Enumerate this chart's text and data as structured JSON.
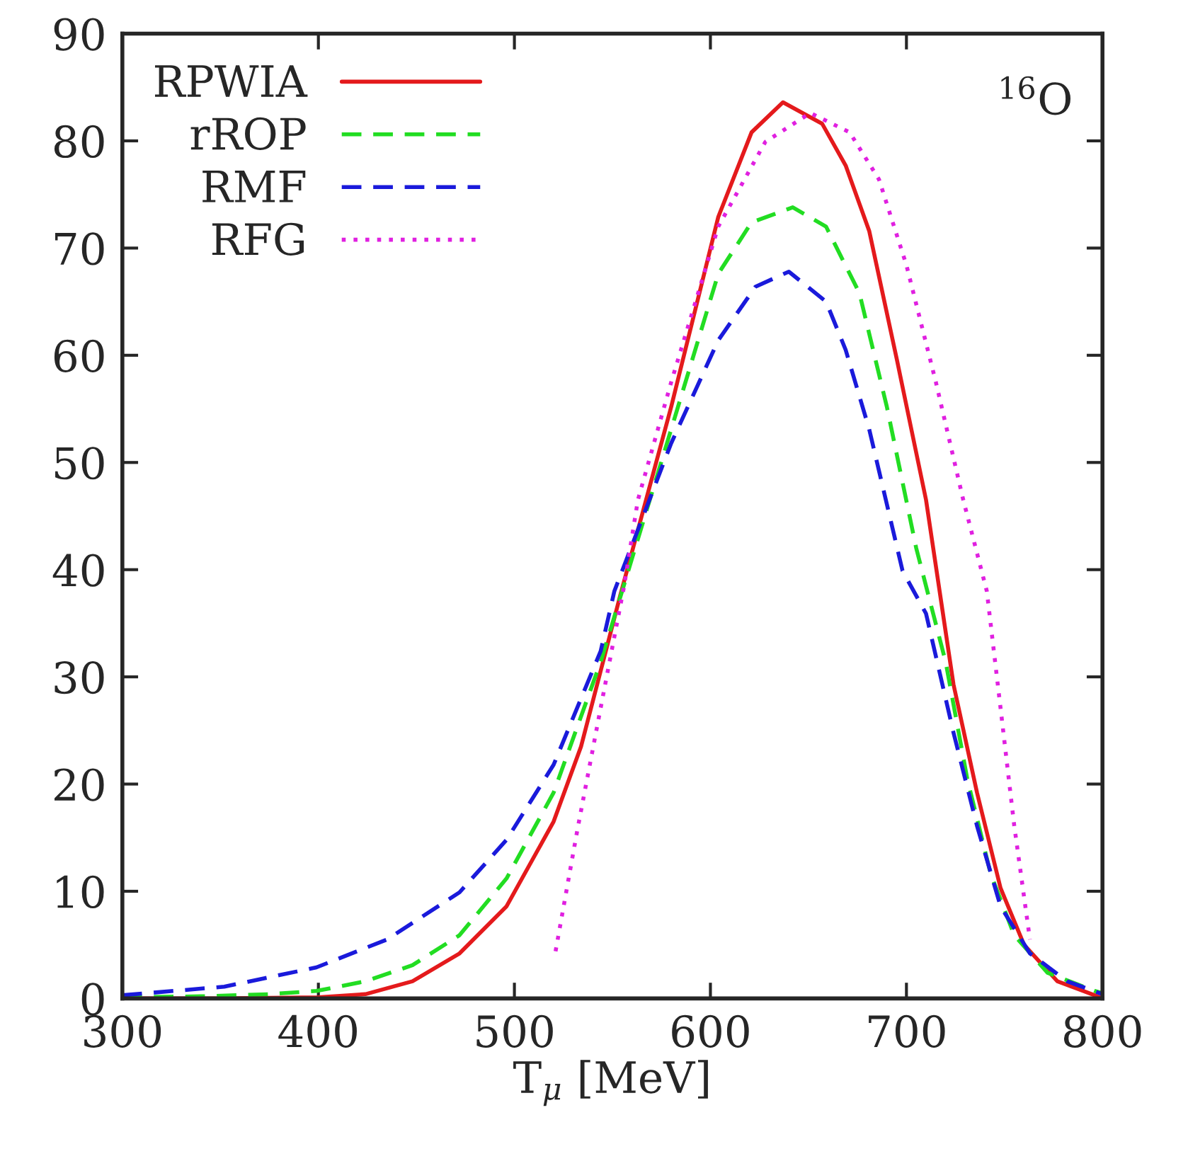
{
  "chart_data": {
    "type": "line",
    "xlabel": "T$_{μ}$ [MeV]",
    "annotations": [
      "$^{16}$O"
    ],
    "xlim": [
      300,
      800
    ],
    "xticks": [
      300,
      400,
      500,
      600,
      700,
      800
    ],
    "ylim": [
      0,
      90
    ],
    "yticks": [
      0,
      10,
      20,
      30,
      40,
      50,
      60,
      70,
      80,
      90
    ],
    "grid": false,
    "legend": "top left",
    "series": [
      {
        "name": "RPWIA",
        "color": "#e41a1c",
        "line_style": "solid",
        "x": [
          300,
          350,
          400,
          424,
          448,
          472,
          496,
          520,
          534,
          554,
          580,
          604,
          621,
          637,
          657,
          669,
          681,
          695,
          710,
          724,
          736,
          748,
          760,
          777,
          796,
          800
        ],
        "values": [
          0.0,
          0.0,
          0.1,
          0.4,
          1.6,
          4.2,
          8.6,
          16.5,
          23.5,
          37.6,
          55.2,
          72.9,
          80.8,
          83.6,
          81.6,
          77.7,
          71.6,
          59.7,
          46.5,
          29.3,
          19.2,
          10.3,
          5.0,
          1.6,
          0.3,
          0.0
        ]
      },
      {
        "name": "rROP",
        "color": "#22dd22",
        "line_style": "dashed",
        "x": [
          300,
          340,
          375,
          399,
          424,
          448,
          472,
          496,
          520,
          544,
          580,
          604,
          621,
          642,
          659,
          676,
          690,
          705,
          720,
          731,
          743,
          755,
          772,
          796,
          800
        ],
        "values": [
          0.1,
          0.2,
          0.4,
          0.7,
          1.6,
          3.1,
          5.9,
          11.2,
          19.2,
          31.4,
          53.1,
          67.6,
          72.4,
          73.8,
          72.0,
          65.8,
          55.2,
          42.0,
          31.4,
          20.5,
          11.6,
          5.9,
          2.4,
          0.7,
          0.5
        ]
      },
      {
        "name": "RMF",
        "color": "#1a1adb",
        "line_style": "dashed",
        "x": [
          300,
          352,
          399,
          435,
          472,
          496,
          520,
          544,
          551,
          580,
          604,
          623,
          640,
          659,
          669,
          681,
          698,
          710,
          724,
          736,
          748,
          763,
          782,
          800
        ],
        "values": [
          0.3,
          1.1,
          2.9,
          5.5,
          9.9,
          14.8,
          21.8,
          32.4,
          38.0,
          51.8,
          61.4,
          66.4,
          67.8,
          65.0,
          60.5,
          53.1,
          39.9,
          35.9,
          24.8,
          16.1,
          8.6,
          4.2,
          1.6,
          0.4
        ]
      },
      {
        "name": "RFG",
        "color": "#e020e0",
        "line_style": "dotted",
        "x": [
          521,
          532,
          544,
          556,
          563,
          580,
          604,
          628,
          651,
          671,
          686,
          700,
          715,
          729,
          741,
          748,
          755,
          763
        ],
        "values": [
          4.4,
          15.6,
          27.1,
          38.5,
          46.5,
          57.5,
          72.0,
          79.9,
          82.6,
          80.8,
          76.4,
          68.4,
          57.5,
          46.5,
          38.0,
          27.1,
          16.1,
          5.5
        ]
      }
    ]
  }
}
